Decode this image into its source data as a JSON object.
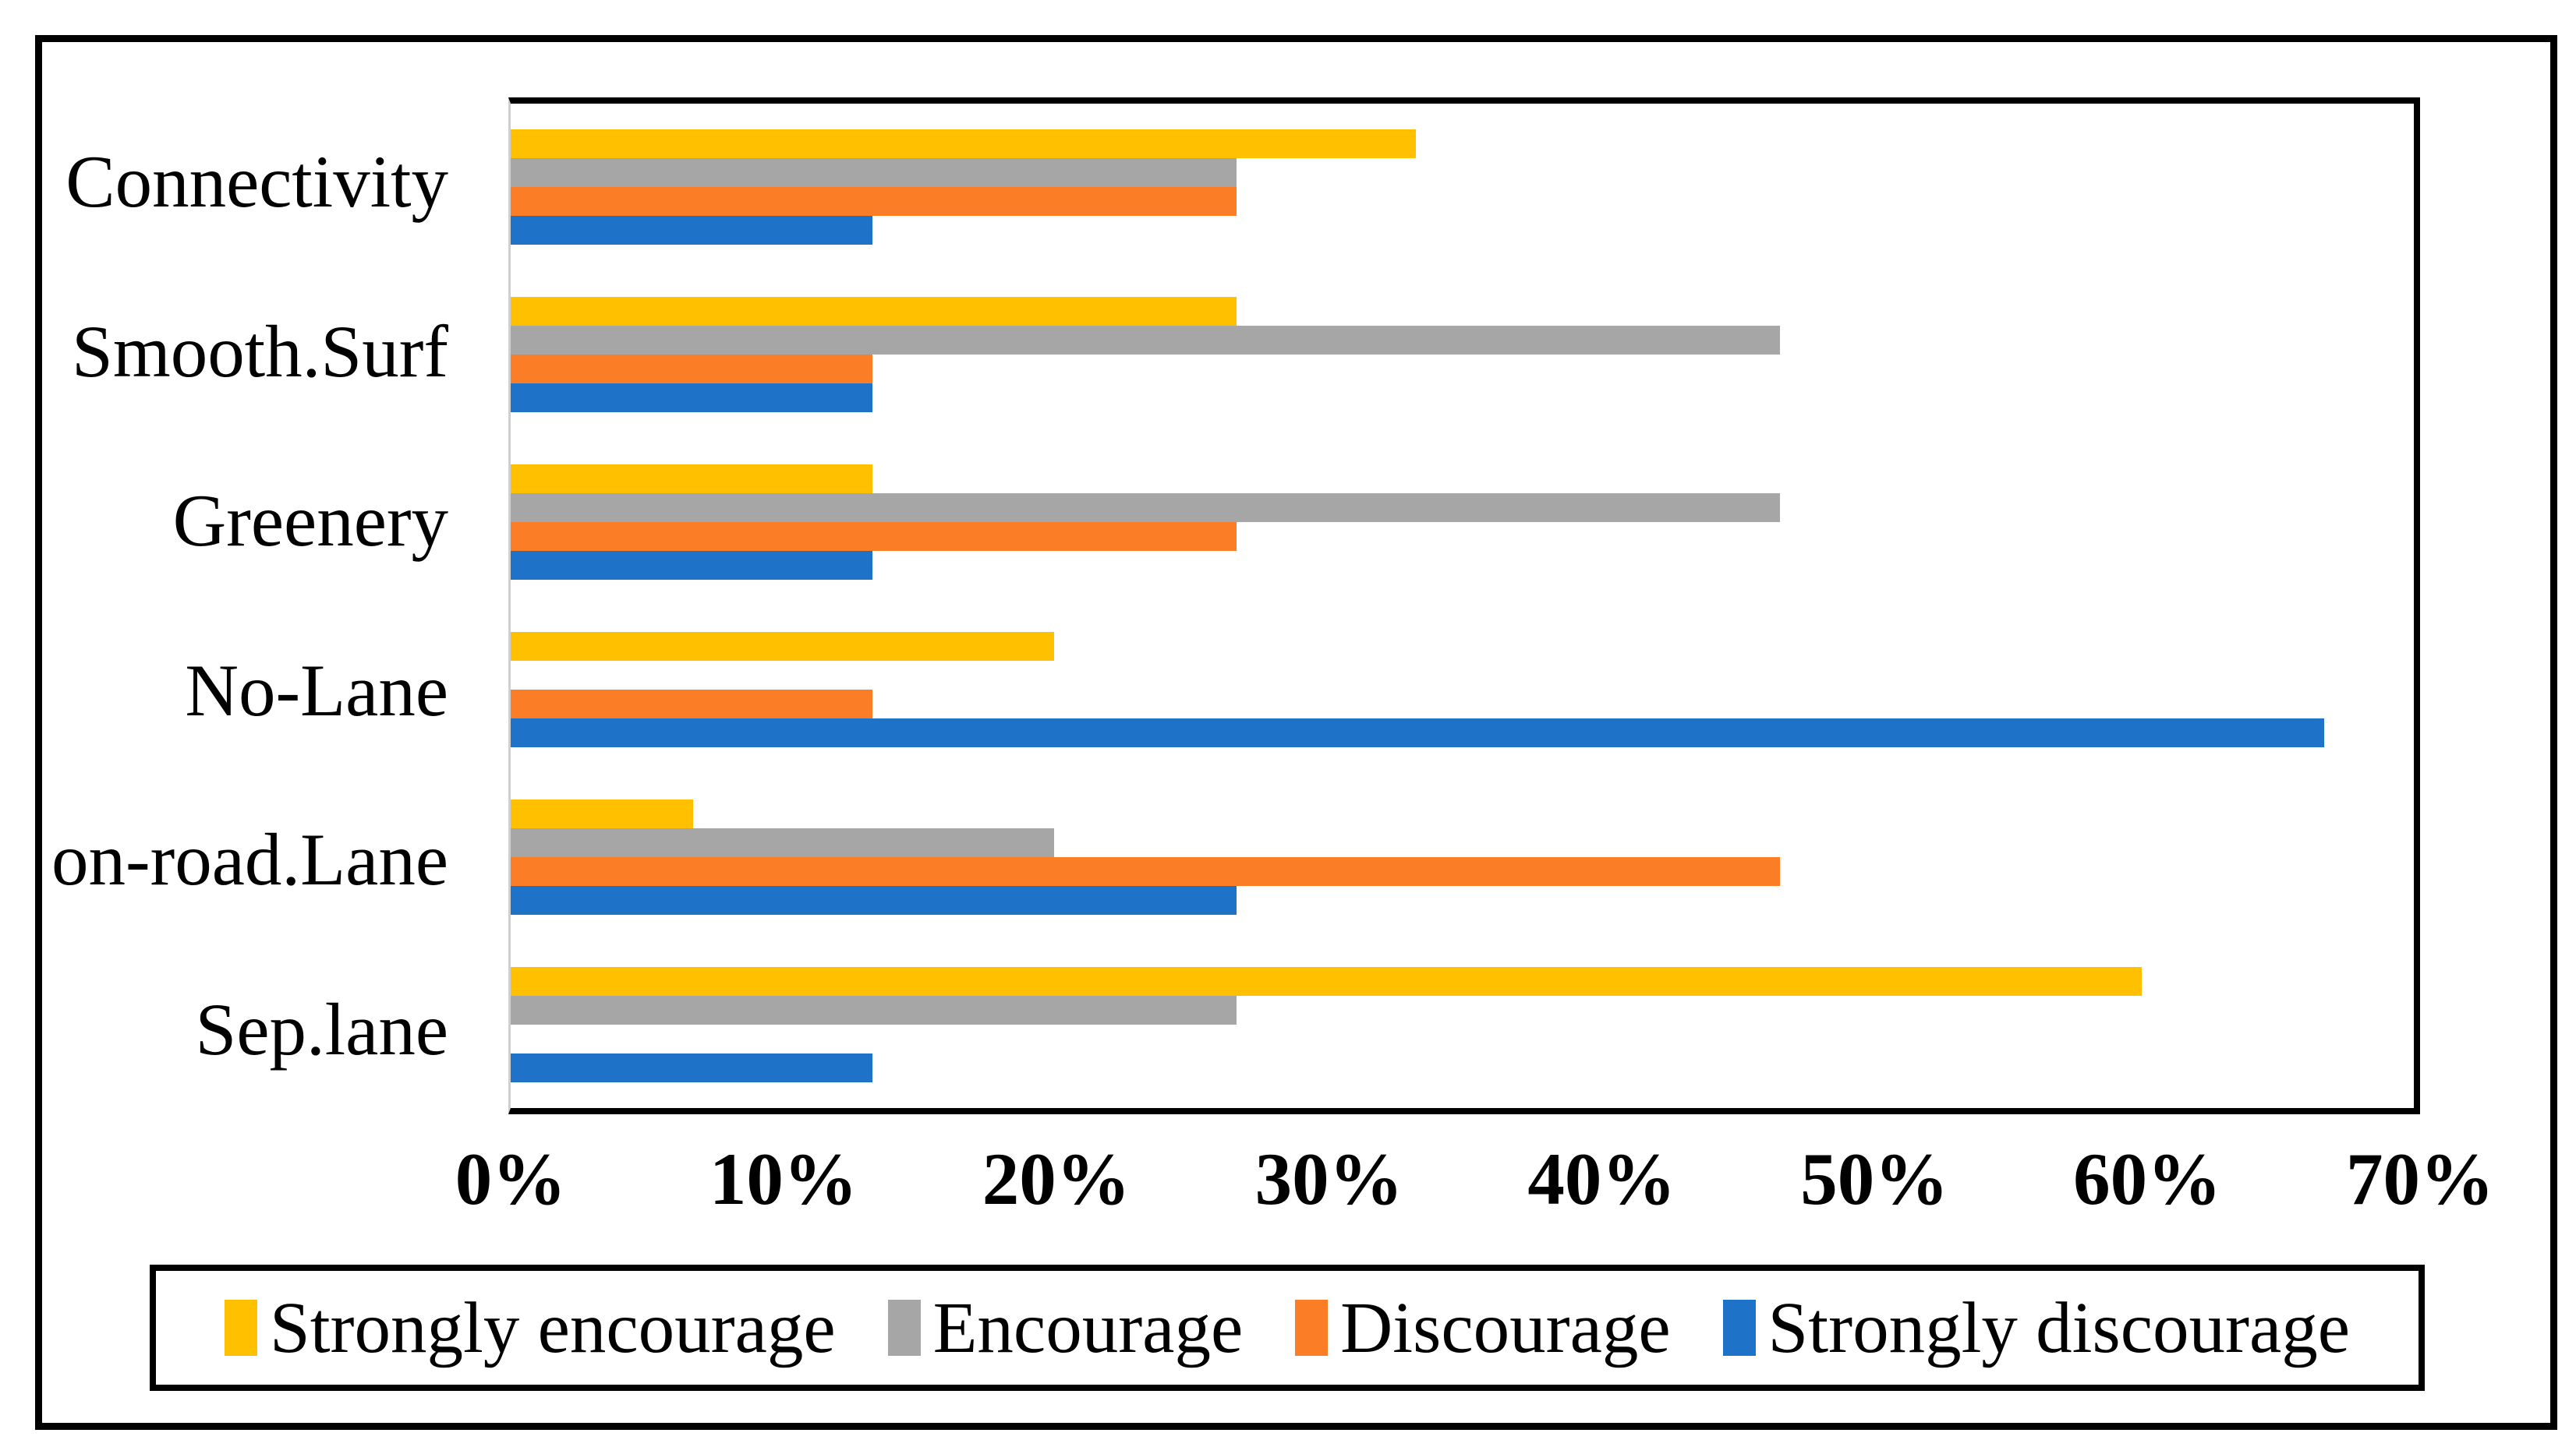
{
  "chart_data": {
    "type": "bar",
    "orientation": "horizontal",
    "title": "",
    "xlabel": "",
    "ylabel": "",
    "grid": false,
    "legend_position": "bottom",
    "categories_top_to_bottom": [
      "Connectivity",
      "Smooth.Surf",
      "Greenery",
      "No-Lane",
      "on-road.Lane",
      "Sep.lane"
    ],
    "series": [
      {
        "name": "Strongly encourage",
        "color": "#FFC000",
        "values": [
          33.3,
          26.7,
          13.3,
          20.0,
          6.7,
          60.0
        ]
      },
      {
        "name": "Encourage",
        "color": "#A6A6A6",
        "values": [
          26.7,
          46.7,
          46.7,
          0.0,
          20.0,
          26.7
        ]
      },
      {
        "name": "Discourage",
        "color": "#FB7D25",
        "values": [
          26.7,
          13.3,
          26.7,
          13.3,
          46.7,
          0.0
        ]
      },
      {
        "name": "Strongly discourage",
        "color": "#1E73C8",
        "values": [
          13.3,
          13.3,
          13.3,
          66.7,
          26.7,
          13.3
        ]
      }
    ],
    "x_axis": {
      "min": 0,
      "max": 70,
      "tick_labels": [
        "0%",
        "10%",
        "20%",
        "30%",
        "40%",
        "50%",
        "60%",
        "70%"
      ]
    },
    "colors": {
      "frame": "#000000",
      "axis_line": "#cfcfcf",
      "background": "#ffffff"
    }
  }
}
